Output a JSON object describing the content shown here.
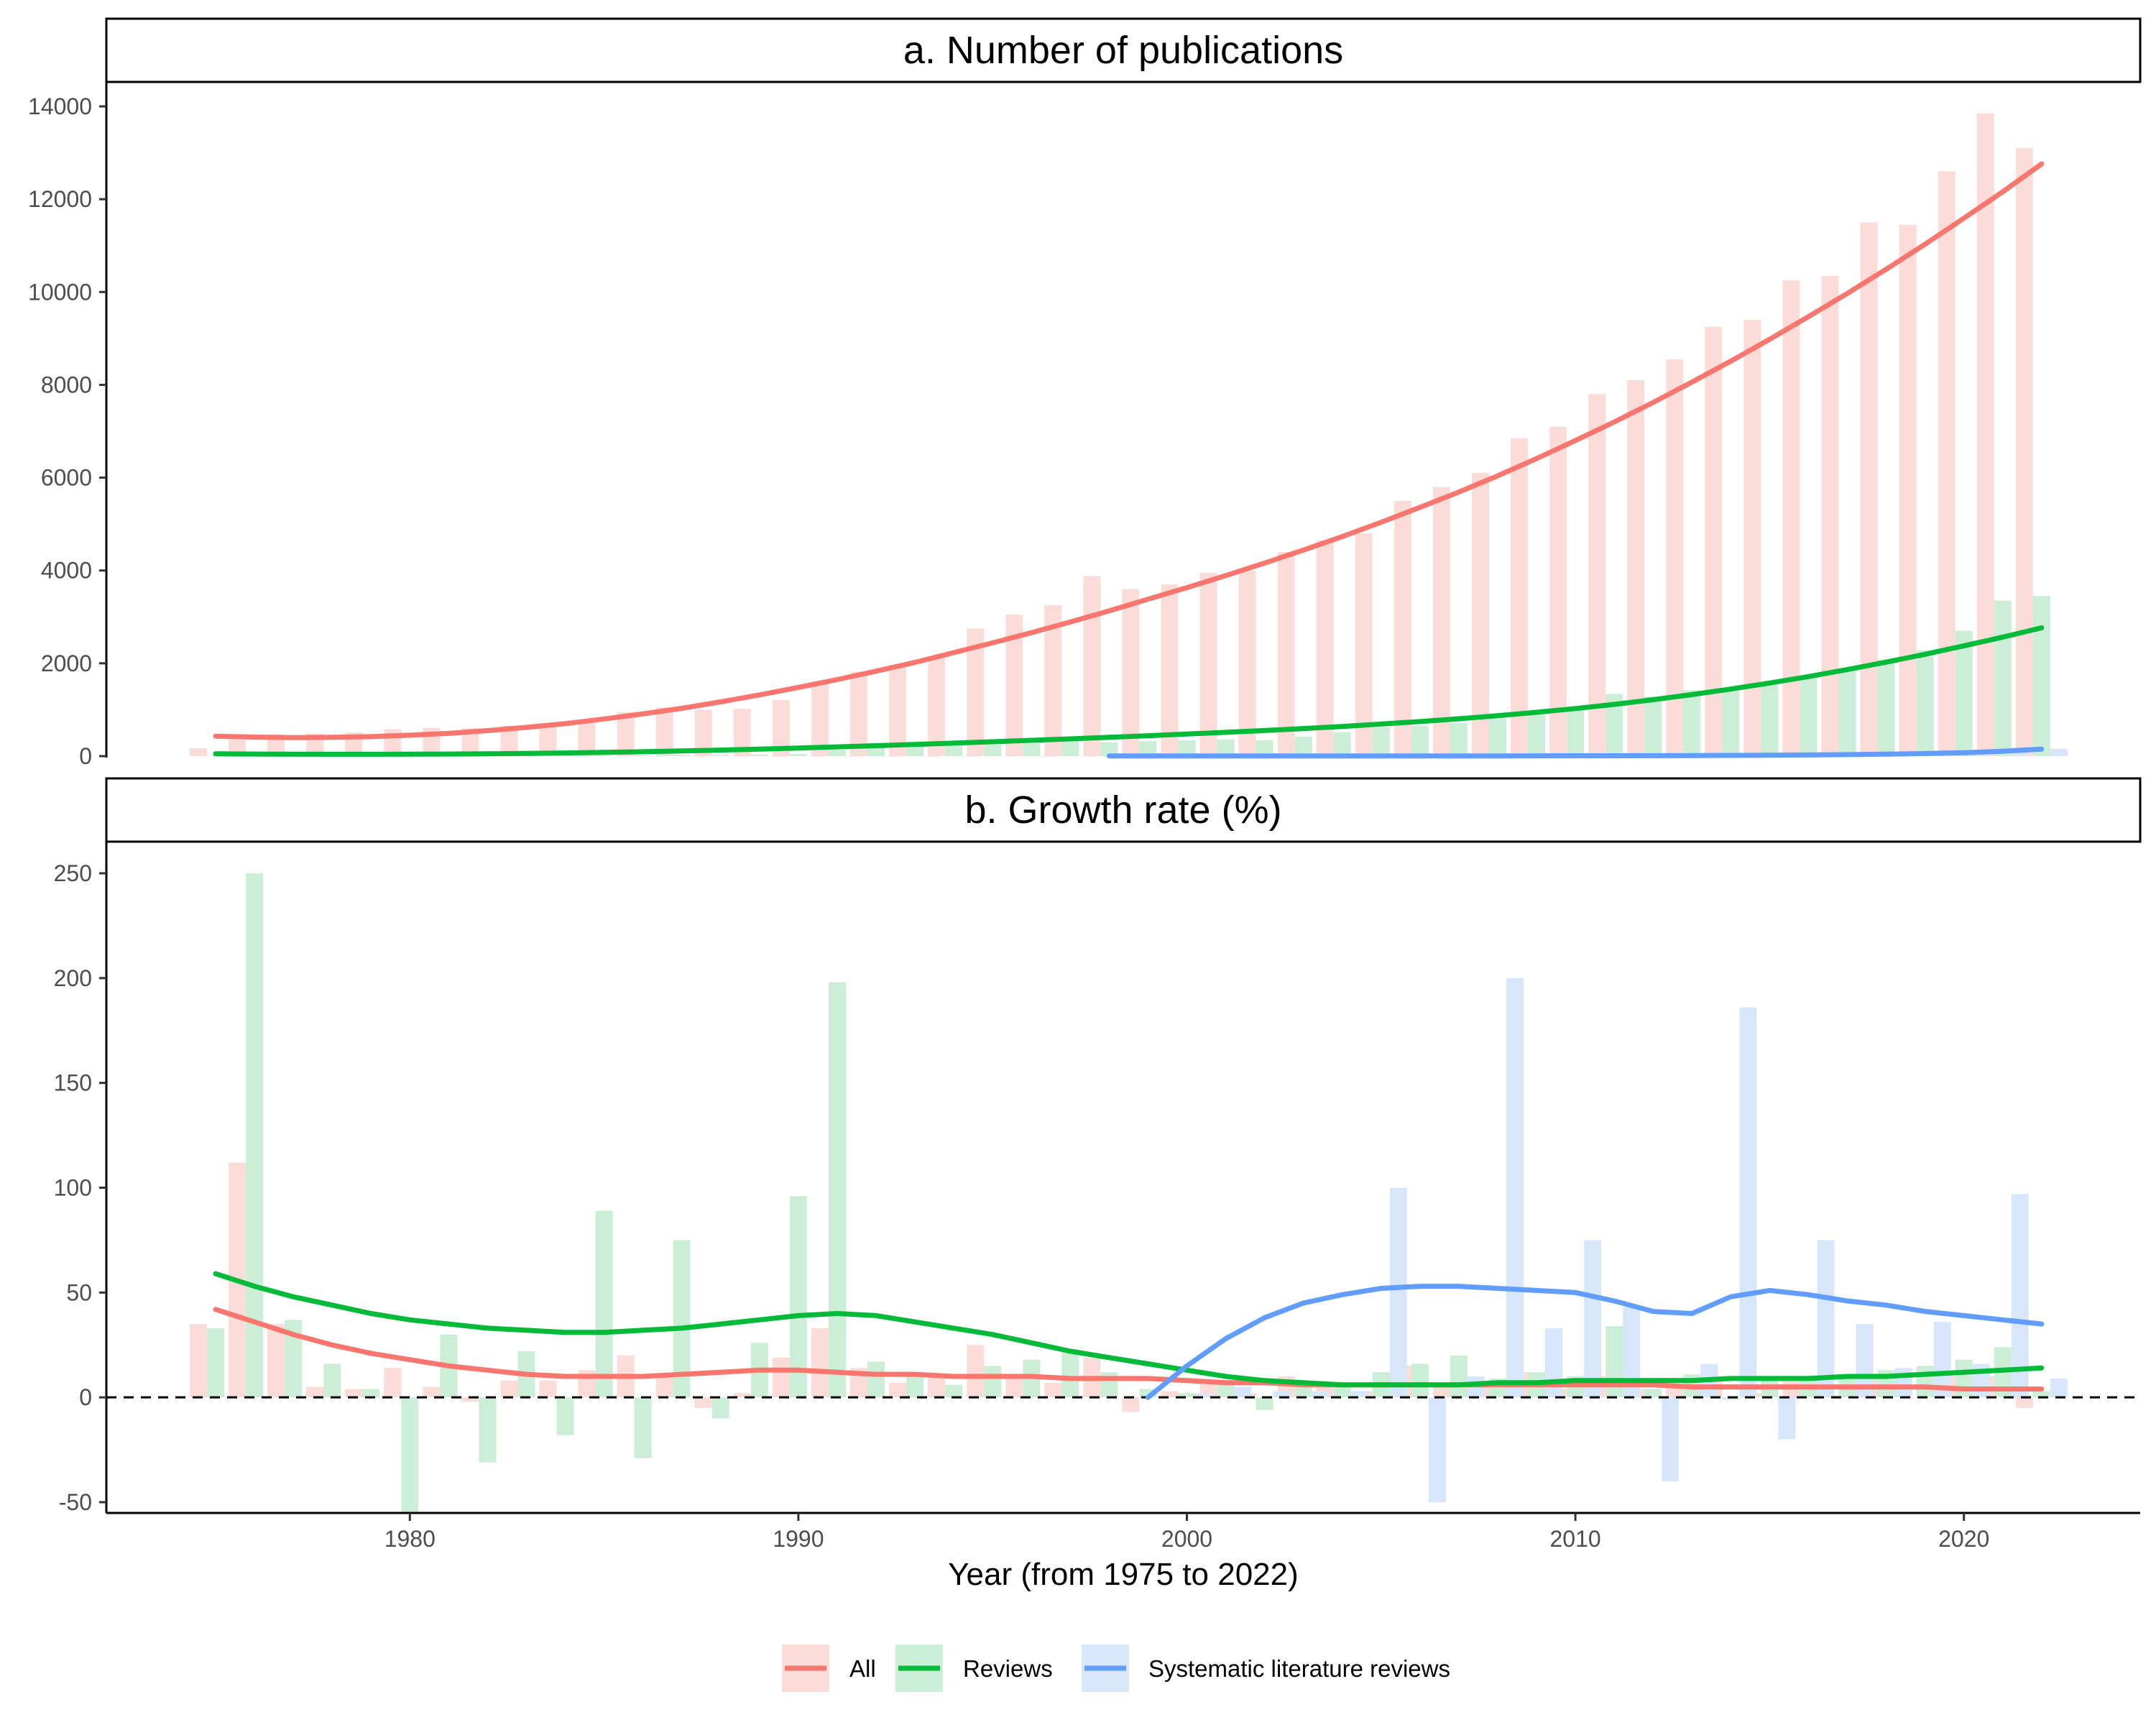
{
  "chart_data": [
    {
      "type": "bar",
      "panel": "a",
      "title": "a. Number of publications",
      "ylim": [
        0,
        14000
      ],
      "yticks": [
        0,
        2000,
        4000,
        6000,
        8000,
        10000,
        12000,
        14000
      ],
      "grid": false,
      "categories": [
        1975,
        1976,
        1977,
        1978,
        1979,
        1980,
        1981,
        1982,
        1983,
        1984,
        1985,
        1986,
        1987,
        1988,
        1989,
        1990,
        1991,
        1992,
        1993,
        1994,
        1995,
        1996,
        1997,
        1998,
        1999,
        2000,
        2001,
        2002,
        2003,
        2004,
        2005,
        2006,
        2007,
        2008,
        2009,
        2010,
        2011,
        2012,
        2013,
        2014,
        2015,
        2016,
        2017,
        2018,
        2019,
        2020,
        2021,
        2022
      ],
      "series": [
        {
          "name": "All",
          "values": [
            170,
            360,
            470,
            490,
            510,
            580,
            610,
            600,
            650,
            700,
            790,
            950,
            1050,
            1000,
            1020,
            1210,
            1600,
            1820,
            1950,
            2150,
            2750,
            3050,
            3250,
            3880,
            3600,
            3700,
            3950,
            4000,
            4400,
            4650,
            4800,
            5500,
            5800,
            6100,
            6850,
            7100,
            7800,
            8100,
            8550,
            9250,
            9400,
            10250,
            10350,
            11500,
            11450,
            12600,
            13850,
            13100
          ]
        },
        {
          "name": "Reviews",
          "values": [
            5,
            10,
            15,
            15,
            15,
            10,
            15,
            12,
            15,
            14,
            25,
            20,
            30,
            30,
            35,
            45,
            130,
            200,
            220,
            230,
            250,
            280,
            330,
            300,
            320,
            340,
            360,
            340,
            420,
            520,
            620,
            660,
            720,
            810,
            930,
            1020,
            1340,
            1280,
            1420,
            1400,
            1540,
            1700,
            1850,
            2080,
            2280,
            2700,
            3350,
            3450
          ]
        },
        {
          "name": "Systematic literature reviews",
          "values": [
            0,
            0,
            0,
            0,
            0,
            0,
            0,
            0,
            0,
            0,
            0,
            0,
            0,
            0,
            0,
            0,
            0,
            0,
            0,
            0,
            0,
            0,
            0,
            0,
            1,
            2,
            2,
            2,
            3,
            3,
            4,
            6,
            8,
            10,
            12,
            16,
            20,
            22,
            30,
            45,
            55,
            65,
            80,
            95,
            110,
            125,
            150,
            160
          ]
        }
      ],
      "trend": {
        "All": [
          430,
          410,
          400,
          405,
          420,
          450,
          490,
          550,
          620,
          700,
          800,
          910,
          1030,
          1170,
          1320,
          1480,
          1650,
          1830,
          2020,
          2230,
          2440,
          2660,
          2890,
          3130,
          3380,
          3630,
          3890,
          4160,
          4440,
          4730,
          5040,
          5360,
          5690,
          6040,
          6410,
          6800,
          7200,
          7620,
          8060,
          8510,
          8980,
          9470,
          9970,
          10490,
          11030,
          11590,
          12160,
          12760
        ],
        "Reviews": [
          50,
          45,
          42,
          40,
          40,
          42,
          45,
          50,
          58,
          68,
          80,
          95,
          112,
          130,
          152,
          175,
          200,
          225,
          252,
          280,
          310,
          340,
          372,
          405,
          440,
          475,
          512,
          552,
          595,
          640,
          690,
          745,
          805,
          870,
          945,
          1025,
          1115,
          1215,
          1325,
          1445,
          1575,
          1715,
          1865,
          2025,
          2195,
          2375,
          2565,
          2765
        ],
        "Systematic literature reviews": [
          null,
          null,
          null,
          null,
          null,
          null,
          null,
          null,
          null,
          null,
          null,
          null,
          null,
          null,
          null,
          null,
          null,
          null,
          null,
          null,
          null,
          null,
          null,
          5,
          5,
          5,
          5,
          5,
          5,
          5,
          5,
          5,
          5,
          5,
          6,
          7,
          8,
          10,
          12,
          15,
          20,
          25,
          32,
          42,
          55,
          75,
          105,
          150
        ]
      }
    },
    {
      "type": "bar",
      "panel": "b",
      "title": "b. Growth rate (%)",
      "xlabel": "Year (from 1975 to 2022)",
      "ylim": [
        -55,
        255
      ],
      "yticks": [
        -50,
        0,
        50,
        100,
        150,
        200,
        250
      ],
      "xticks": [
        1980,
        1990,
        2000,
        2010,
        2020
      ],
      "reference_line": {
        "y": 0,
        "style": "dashed"
      },
      "grid": false,
      "categories": [
        1975,
        1976,
        1977,
        1978,
        1979,
        1980,
        1981,
        1982,
        1983,
        1984,
        1985,
        1986,
        1987,
        1988,
        1989,
        1990,
        1991,
        1992,
        1993,
        1994,
        1995,
        1996,
        1997,
        1998,
        1999,
        2000,
        2001,
        2002,
        2003,
        2004,
        2005,
        2006,
        2007,
        2008,
        2009,
        2010,
        2011,
        2012,
        2013,
        2014,
        2015,
        2016,
        2017,
        2018,
        2019,
        2020,
        2021,
        2022
      ],
      "series": [
        {
          "name": "All",
          "values": [
            35,
            112,
            35,
            5,
            4,
            14,
            5,
            -2,
            8,
            8,
            13,
            20,
            10,
            -5,
            2,
            19,
            33,
            14,
            7,
            10,
            25,
            11,
            7,
            19,
            -7,
            3,
            7,
            2,
            10,
            6,
            3,
            15,
            6,
            5,
            12,
            4,
            10,
            4,
            6,
            8,
            2,
            9,
            1,
            11,
            0,
            10,
            10,
            -5
          ]
        },
        {
          "name": "Reviews",
          "values": [
            33,
            250,
            37,
            16,
            4,
            -55,
            30,
            -31,
            22,
            -18,
            89,
            -29,
            75,
            -10,
            26,
            96,
            198,
            17,
            11,
            6,
            15,
            18,
            23,
            12,
            4,
            2,
            8,
            -6,
            7,
            6,
            12,
            16,
            20,
            9,
            12,
            10,
            34,
            4,
            11,
            -1,
            10,
            10,
            9,
            13,
            15,
            18,
            24,
            3
          ]
        },
        {
          "name": "Systematic literature reviews",
          "values": [
            null,
            null,
            null,
            null,
            null,
            null,
            null,
            null,
            null,
            null,
            null,
            null,
            null,
            null,
            null,
            null,
            null,
            null,
            null,
            null,
            null,
            null,
            null,
            null,
            null,
            2,
            5,
            3,
            3,
            3,
            100,
            -50,
            10,
            200,
            33,
            75,
            43,
            -40,
            16,
            186,
            -20,
            75,
            35,
            14,
            36,
            16,
            97,
            9
          ]
        }
      ],
      "trend": {
        "All": [
          42,
          36,
          30,
          25,
          21,
          18,
          15,
          13,
          11,
          10,
          10,
          10,
          11,
          12,
          13,
          13,
          12,
          11,
          11,
          10,
          10,
          10,
          9,
          9,
          9,
          8,
          7,
          7,
          6,
          6,
          6,
          6,
          6,
          6,
          6,
          6,
          6,
          6,
          5,
          5,
          5,
          5,
          5,
          5,
          5,
          4,
          4,
          4
        ],
        "Reviews": [
          59,
          53,
          48,
          44,
          40,
          37,
          35,
          33,
          32,
          31,
          31,
          32,
          33,
          35,
          37,
          39,
          40,
          39,
          36,
          33,
          30,
          26,
          22,
          19,
          16,
          13,
          10,
          8,
          7,
          6,
          6,
          6,
          6,
          7,
          7,
          8,
          8,
          8,
          8,
          9,
          9,
          9,
          10,
          10,
          11,
          12,
          13,
          14
        ],
        "Systematic literature reviews": [
          null,
          null,
          null,
          null,
          null,
          null,
          null,
          null,
          null,
          null,
          null,
          null,
          null,
          null,
          null,
          null,
          null,
          null,
          null,
          null,
          null,
          null,
          null,
          null,
          0,
          15,
          28,
          38,
          45,
          49,
          52,
          53,
          53,
          52,
          51,
          50,
          46,
          41,
          40,
          48,
          51,
          49,
          46,
          44,
          41,
          39,
          37,
          35
        ]
      }
    }
  ],
  "legend": {
    "position": "bottom",
    "items": [
      {
        "label": "All",
        "color": "#f8766d"
      },
      {
        "label": "Reviews",
        "color": "#00ba38"
      },
      {
        "label": "Systematic literature reviews",
        "color": "#619cff"
      }
    ]
  },
  "colors": {
    "All": "#f8766d",
    "Reviews": "#00ba38",
    "Systematic literature reviews": "#619cff",
    "All_bar": "#fcdcd9",
    "Reviews_bar": "#cdeed6",
    "Systematic literature reviews_bar": "#d8e6fc"
  }
}
